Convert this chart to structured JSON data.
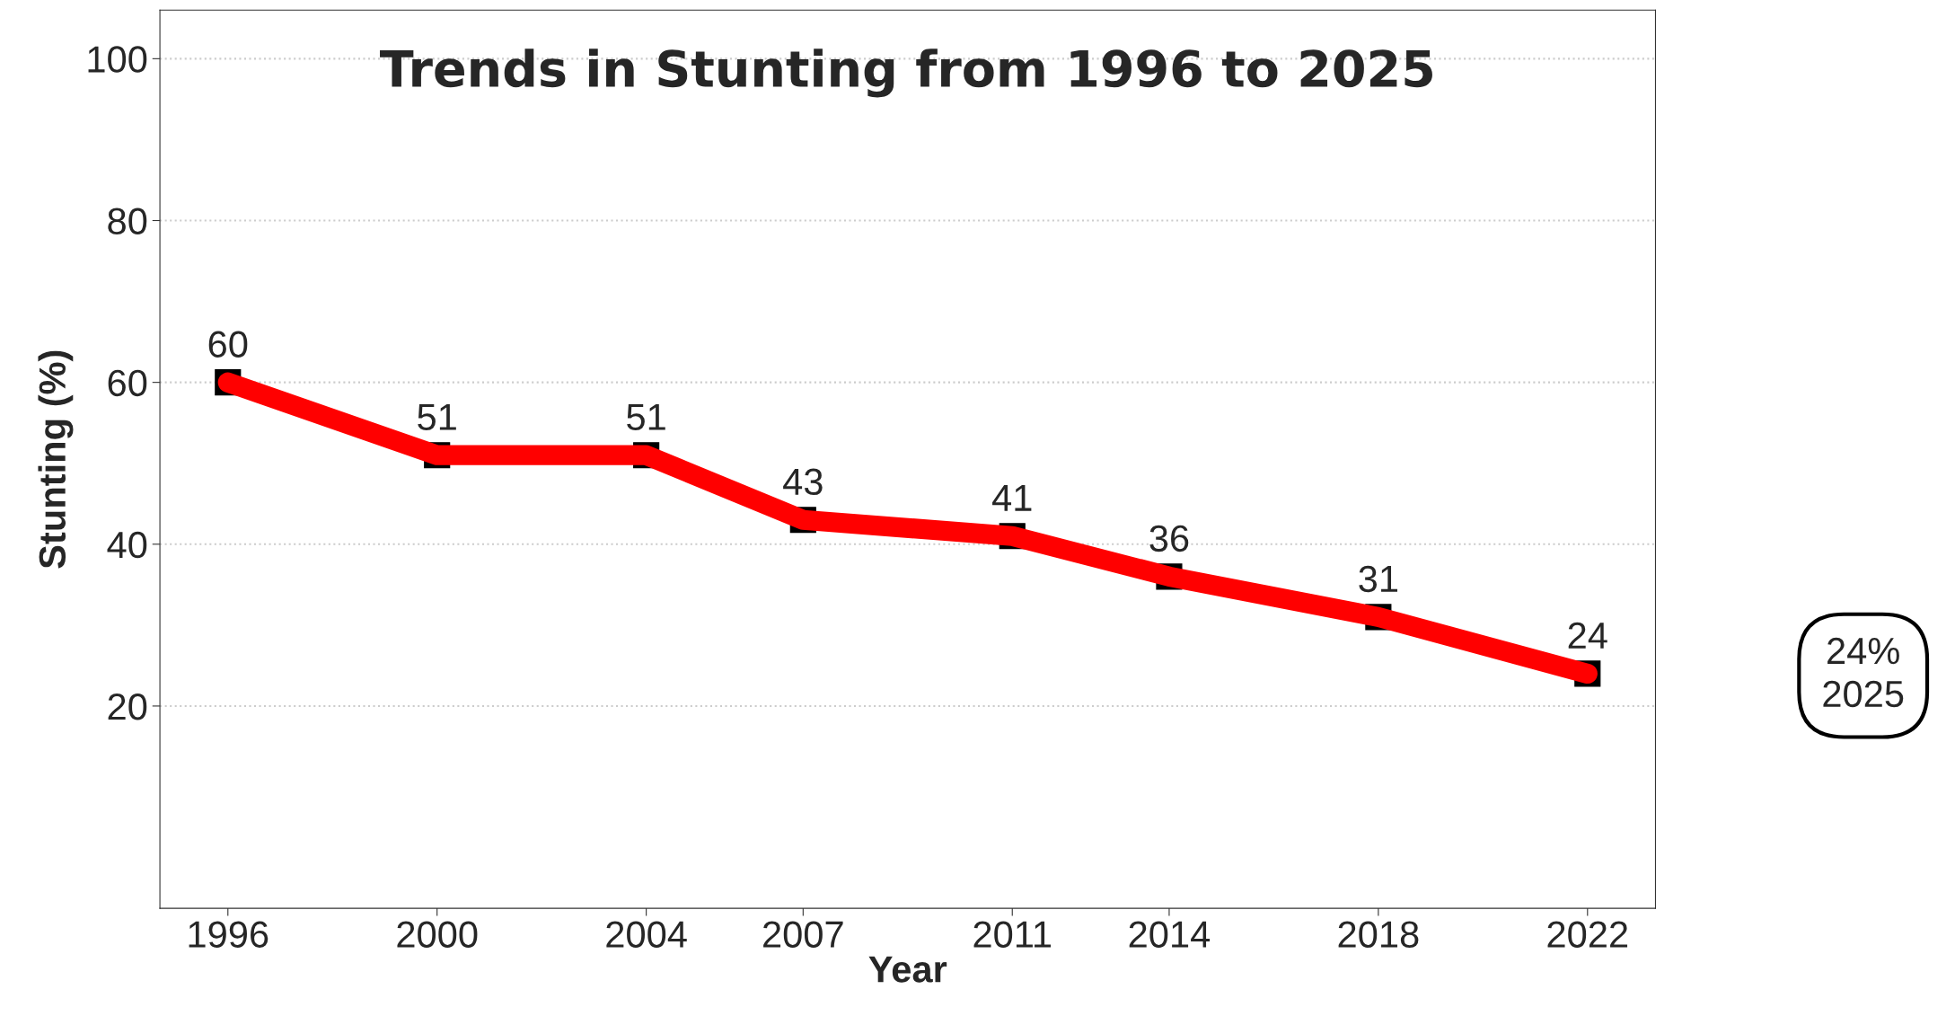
{
  "chart_data": {
    "type": "line",
    "title": "Trends in Stunting from 1996 to 2025",
    "xlabel": "Year",
    "ylabel": "Stunting (%)",
    "x": [
      1996,
      2000,
      2004,
      2007,
      2011,
      2014,
      2018,
      2022
    ],
    "series": [
      {
        "color": "#ff0000",
        "values": [
          60,
          51,
          51,
          43,
          41,
          36,
          31,
          24
        ]
      }
    ],
    "marker": "square",
    "data_labels": true,
    "grid": "y",
    "xlim": [
      1994.7,
      2023.3
    ],
    "xticks": [
      1996,
      2000,
      2004,
      2007,
      2011,
      2014,
      2018,
      2022
    ],
    "ylim": [
      -5,
      106
    ],
    "yticks": [
      20,
      40,
      60,
      80,
      100
    ],
    "annotations": [
      "24%\n2025"
    ]
  }
}
